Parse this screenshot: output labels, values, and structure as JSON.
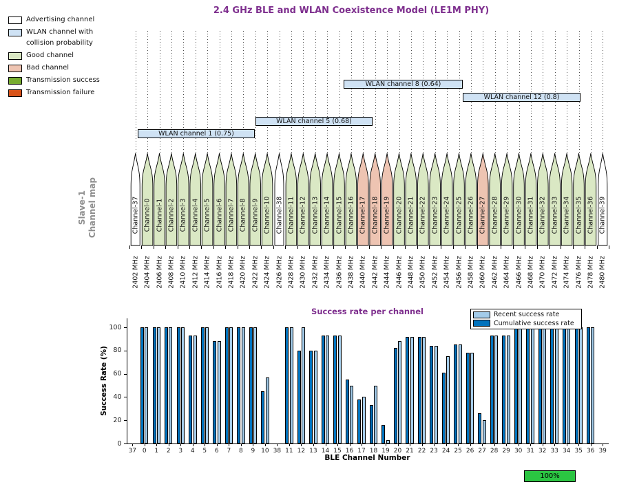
{
  "title": "2.4 GHz BLE and WLAN Coexistence Model (LE1M PHY)",
  "title_color": "#7E2F8E",
  "map_legend": {
    "items": [
      {
        "key": "advertising",
        "label": "Advertising channel",
        "color": "#ffffff"
      },
      {
        "key": "wlan",
        "label": "WLAN channel with collision probability",
        "color": "#cfe2f4"
      },
      {
        "key": "good",
        "label": "Good channel",
        "color": "#dae8c4"
      },
      {
        "key": "bad",
        "label": "Bad channel",
        "color": "#eec4b2"
      },
      {
        "key": "success",
        "label": "Transmission success",
        "color": "#77ac30"
      },
      {
        "key": "failure",
        "label": "Transmission failure",
        "color": "#d95319"
      }
    ]
  },
  "channel_map": {
    "side_label": {
      "line1": "Slave-1",
      "line2": "Channel map"
    },
    "wlan_overlays": [
      {
        "label": "WLAN channel 1 (0.75)"
      },
      {
        "label": "WLAN channel 5 (0.68)"
      },
      {
        "label": "WLAN channel 8 (0.64)"
      },
      {
        "label": "WLAN channel 12 (0.8)"
      }
    ],
    "channels": [
      {
        "name": "Channel-37",
        "freq": "2402 MHz",
        "type": "advertising"
      },
      {
        "name": "Channel-0",
        "freq": "2404 MHz",
        "type": "good"
      },
      {
        "name": "Channel-1",
        "freq": "2406 MHz",
        "type": "good"
      },
      {
        "name": "Channel-2",
        "freq": "2408 MHz",
        "type": "good"
      },
      {
        "name": "Channel-3",
        "freq": "2410 MHz",
        "type": "good"
      },
      {
        "name": "Channel-4",
        "freq": "2412 MHz",
        "type": "good"
      },
      {
        "name": "Channel-5",
        "freq": "2414 MHz",
        "type": "good"
      },
      {
        "name": "Channel-6",
        "freq": "2416 MHz",
        "type": "good"
      },
      {
        "name": "Channel-7",
        "freq": "2418 MHz",
        "type": "good"
      },
      {
        "name": "Channel-8",
        "freq": "2420 MHz",
        "type": "good"
      },
      {
        "name": "Channel-9",
        "freq": "2422 MHz",
        "type": "good"
      },
      {
        "name": "Channel-10",
        "freq": "2424 MHz",
        "type": "good"
      },
      {
        "name": "Channel-38",
        "freq": "2426 MHz",
        "type": "advertising"
      },
      {
        "name": "Channel-11",
        "freq": "2428 MHz",
        "type": "good"
      },
      {
        "name": "Channel-12",
        "freq": "2430 MHz",
        "type": "good"
      },
      {
        "name": "Channel-13",
        "freq": "2432 MHz",
        "type": "good"
      },
      {
        "name": "Channel-14",
        "freq": "2434 MHz",
        "type": "good"
      },
      {
        "name": "Channel-15",
        "freq": "2436 MHz",
        "type": "good"
      },
      {
        "name": "Channel-16",
        "freq": "2438 MHz",
        "type": "good"
      },
      {
        "name": "Channel-17",
        "freq": "2440 MHz",
        "type": "bad"
      },
      {
        "name": "Channel-18",
        "freq": "2442 MHz",
        "type": "bad"
      },
      {
        "name": "Channel-19",
        "freq": "2444 MHz",
        "type": "bad"
      },
      {
        "name": "Channel-20",
        "freq": "2446 MHz",
        "type": "good"
      },
      {
        "name": "Channel-21",
        "freq": "2448 MHz",
        "type": "good"
      },
      {
        "name": "Channel-22",
        "freq": "2450 MHz",
        "type": "good"
      },
      {
        "name": "Channel-23",
        "freq": "2452 MHz",
        "type": "good"
      },
      {
        "name": "Channel-24",
        "freq": "2454 MHz",
        "type": "good"
      },
      {
        "name": "Channel-25",
        "freq": "2456 MHz",
        "type": "good"
      },
      {
        "name": "Channel-26",
        "freq": "2458 MHz",
        "type": "good"
      },
      {
        "name": "Channel-27",
        "freq": "2460 MHz",
        "type": "bad"
      },
      {
        "name": "Channel-28",
        "freq": "2462 MHz",
        "type": "good"
      },
      {
        "name": "Channel-29",
        "freq": "2464 MHz",
        "type": "good"
      },
      {
        "name": "Channel-30",
        "freq": "2466 MHz",
        "type": "good"
      },
      {
        "name": "Channel-31",
        "freq": "2468 MHz",
        "type": "good"
      },
      {
        "name": "Channel-32",
        "freq": "2470 MHz",
        "type": "good"
      },
      {
        "name": "Channel-33",
        "freq": "2472 MHz",
        "type": "good"
      },
      {
        "name": "Channel-34",
        "freq": "2474 MHz",
        "type": "good"
      },
      {
        "name": "Channel-35",
        "freq": "2476 MHz",
        "type": "good"
      },
      {
        "name": "Channel-36",
        "freq": "2478 MHz",
        "type": "good"
      },
      {
        "name": "Channel-39",
        "freq": "2480 MHz",
        "type": "advertising"
      }
    ]
  },
  "chart_data": {
    "type": "bar",
    "title": "Success rate per channel",
    "title_color": "#7E2F8E",
    "xlabel": "BLE Channel Number",
    "ylabel": "Success Rate (%)",
    "ylim": [
      0,
      100
    ],
    "yticks": [
      0,
      20,
      40,
      60,
      80,
      100
    ],
    "grid": false,
    "legend_position": "top-right",
    "categories": [
      "37",
      "0",
      "1",
      "2",
      "3",
      "4",
      "5",
      "6",
      "7",
      "8",
      "9",
      "10",
      "38",
      "11",
      "12",
      "13",
      "14",
      "15",
      "16",
      "17",
      "18",
      "19",
      "20",
      "21",
      "22",
      "23",
      "24",
      "25",
      "26",
      "27",
      "28",
      "29",
      "30",
      "31",
      "32",
      "33",
      "34",
      "35",
      "36",
      "39"
    ],
    "series": [
      {
        "name": "Cumulative success rate",
        "color": "#0072bd",
        "values": [
          0,
          100,
          100,
          100,
          100,
          93,
          100,
          88,
          100,
          100,
          100,
          45,
          0,
          100,
          80,
          80,
          93,
          93,
          55,
          38,
          33,
          16,
          82,
          92,
          92,
          84,
          61,
          85,
          78,
          26,
          93,
          93,
          100,
          100,
          100,
          100,
          100,
          100,
          100,
          0
        ]
      },
      {
        "name": "Recent success rate",
        "color": "#a3cbe9",
        "values": [
          0,
          100,
          100,
          100,
          100,
          93,
          100,
          88,
          100,
          100,
          100,
          57,
          0,
          100,
          100,
          80,
          93,
          93,
          50,
          40,
          50,
          3,
          88,
          92,
          92,
          84,
          75,
          85,
          78,
          20,
          93,
          93,
          100,
          100,
          100,
          100,
          100,
          100,
          100,
          0
        ]
      }
    ],
    "legend": [
      {
        "label": "Recent success rate",
        "color": "#a3cbe9"
      },
      {
        "label": "Cumulative success rate",
        "color": "#0072bd"
      }
    ]
  },
  "status_badge": {
    "label": "100%",
    "color": "#2bc542"
  }
}
